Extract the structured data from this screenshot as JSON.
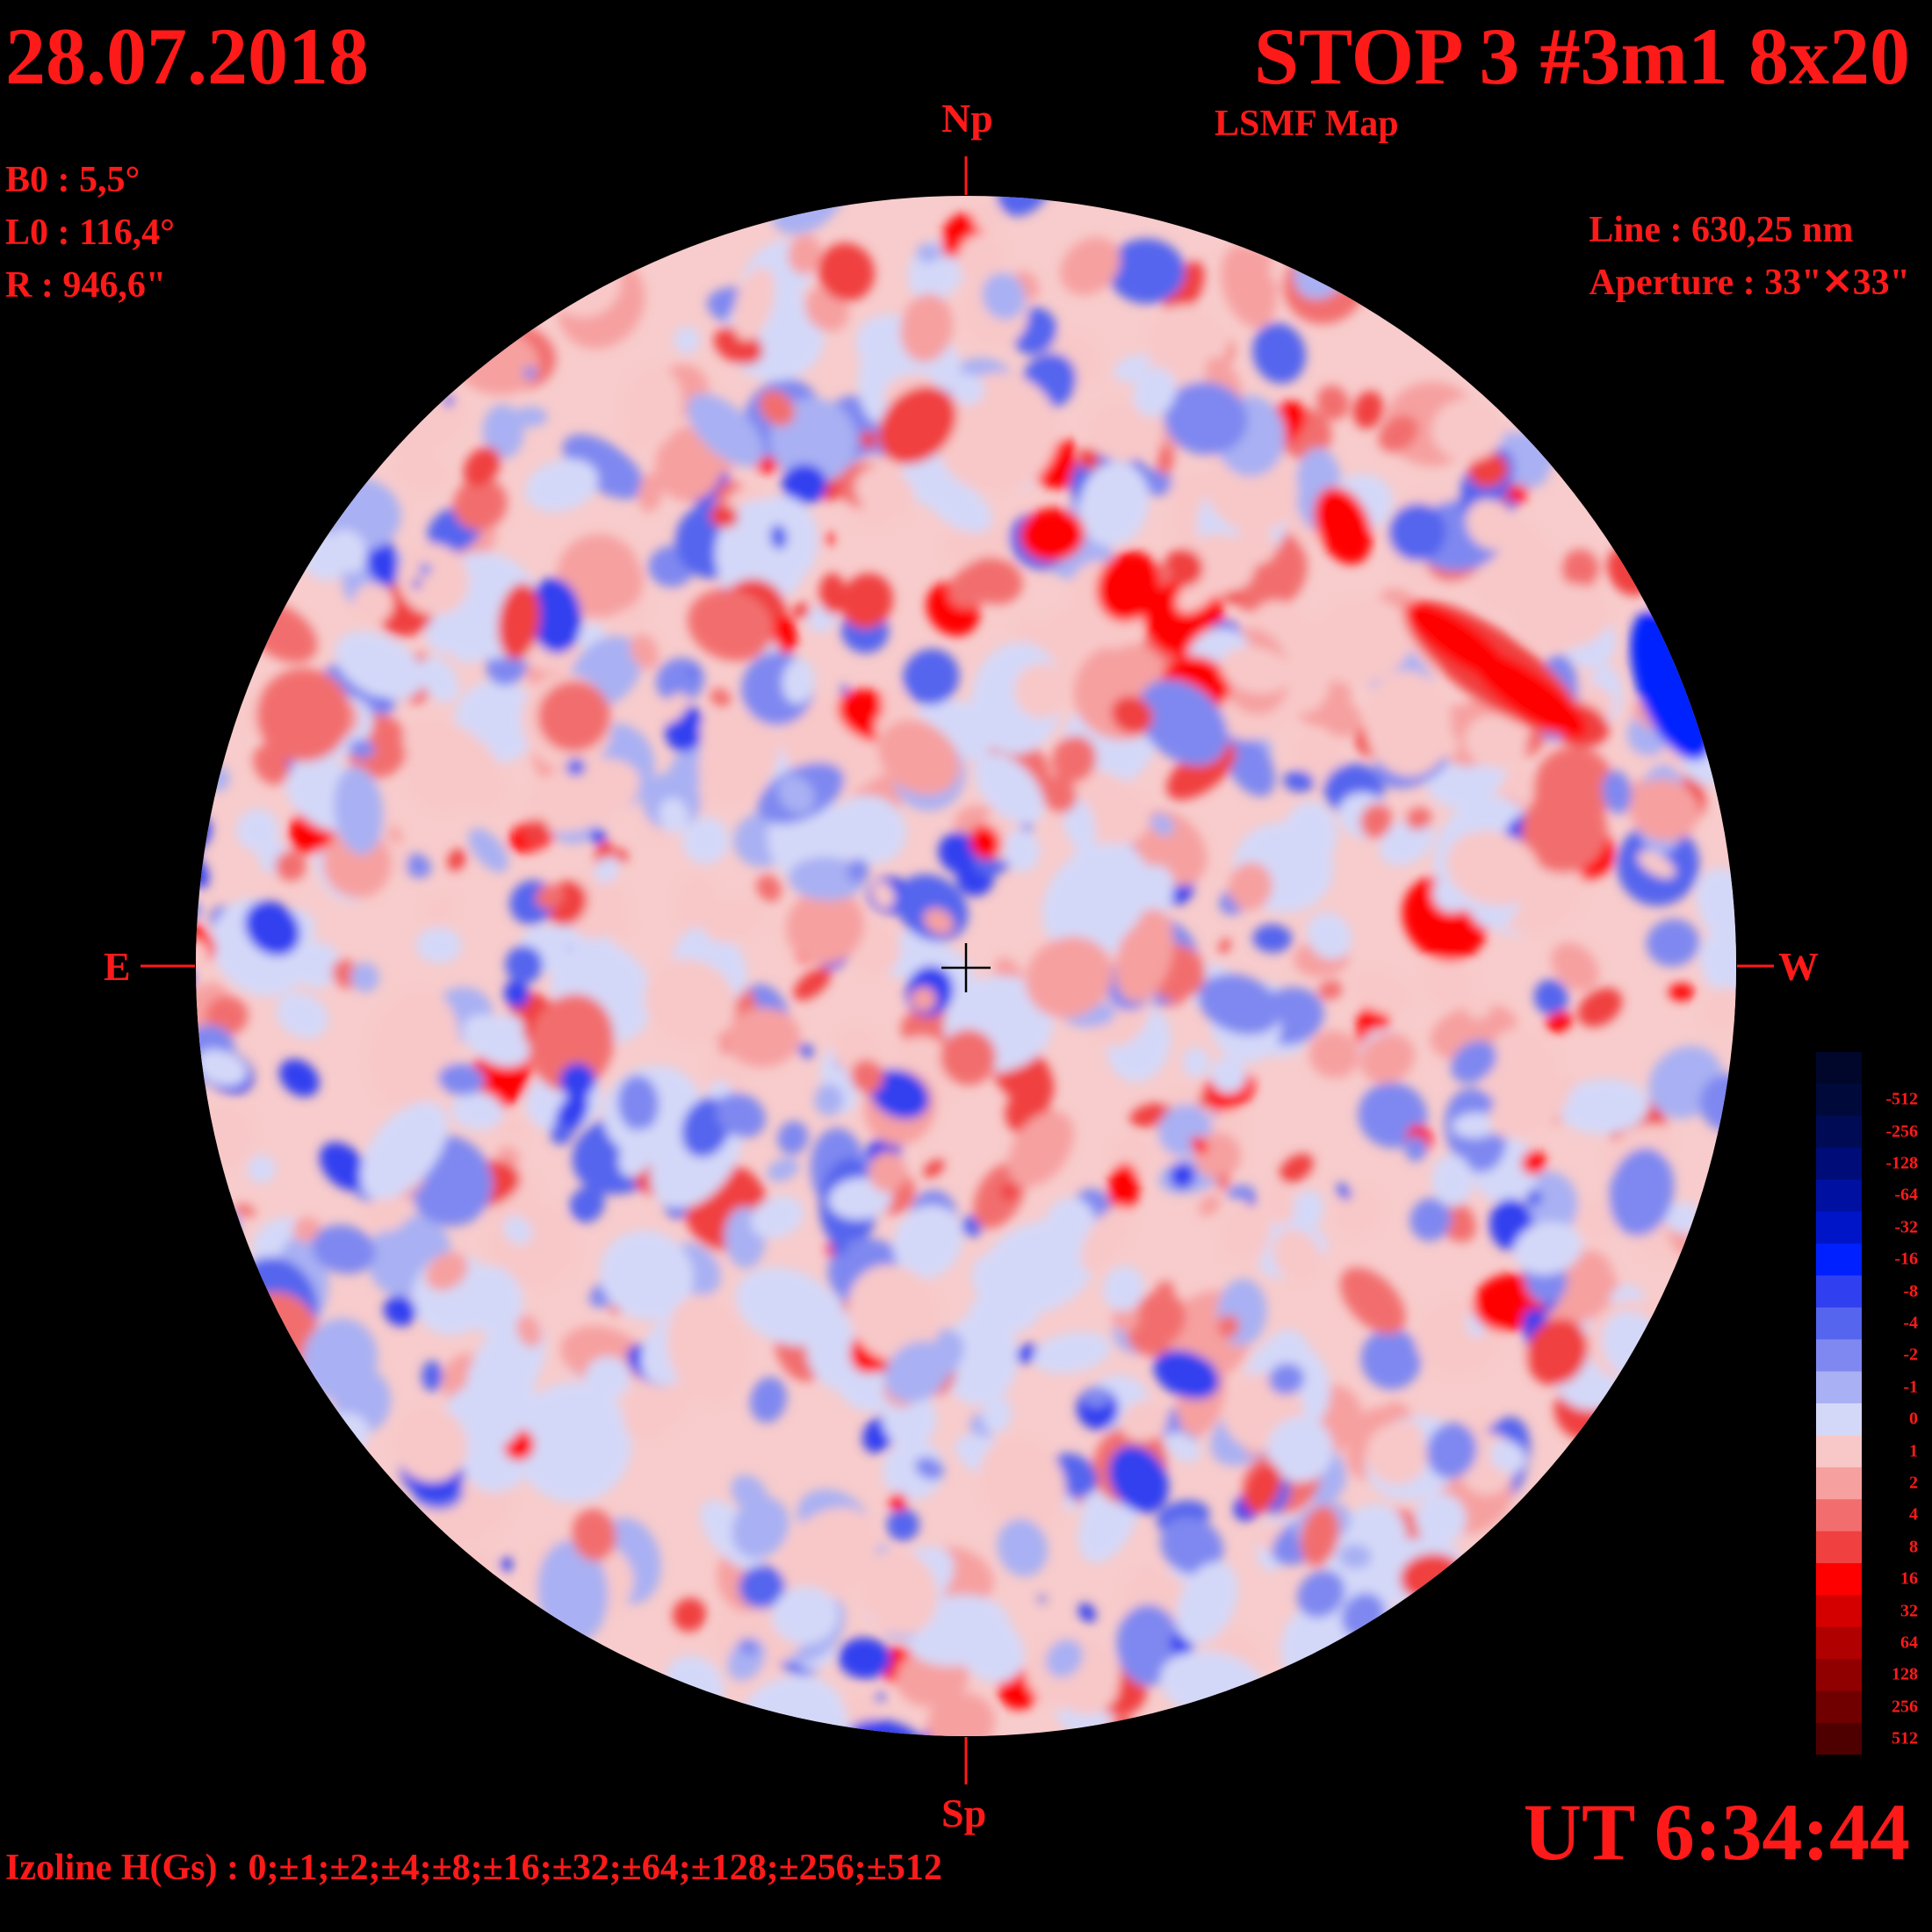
{
  "header": {
    "date": "28.07.2018",
    "station": "STOP 3 #3m1 8x20",
    "subtitle": "LSMF  Map"
  },
  "params": {
    "b0": "B0 : 5,5°",
    "l0": "L0 : 116,4°",
    "r": "R  : 946,6\""
  },
  "instrument": {
    "line": "Line :  630,25 nm",
    "aperture": "Aperture : 33\"✕33\""
  },
  "directions": {
    "north": "Np",
    "south": "Sp",
    "east": "E",
    "west": "W"
  },
  "footer": {
    "ut": "UT 6:34:44",
    "izoline": "Izoline H(Gs) : 0;±1;±2;±4;±8;±16;±32;±64;±128;±256;±512"
  },
  "colorbar": {
    "levels": [
      {
        "label": "-512",
        "color": "#000a3a"
      },
      {
        "label": "-256",
        "color": "#000b55"
      },
      {
        "label": "-128",
        "color": "#000c78"
      },
      {
        "label": "-64",
        "color": "#0010a0"
      },
      {
        "label": "-32",
        "color": "#0015c8"
      },
      {
        "label": "-16",
        "color": "#0020ff"
      },
      {
        "label": "-8",
        "color": "#3040f0"
      },
      {
        "label": "-4",
        "color": "#5565ee"
      },
      {
        "label": "-2",
        "color": "#7f88f0"
      },
      {
        "label": "-1",
        "color": "#a9b0f3"
      },
      {
        "label": "0",
        "color": "#d4d8f8"
      },
      {
        "label": "1",
        "color": "#f8c8c8"
      },
      {
        "label": "2",
        "color": "#f6a0a0"
      },
      {
        "label": "4",
        "color": "#f26e6e"
      },
      {
        "label": "8",
        "color": "#f04040"
      },
      {
        "label": "16",
        "color": "#ff0000"
      },
      {
        "label": "32",
        "color": "#d40000"
      },
      {
        "label": "64",
        "color": "#b00000"
      },
      {
        "label": "128",
        "color": "#900000"
      },
      {
        "label": "256",
        "color": "#700000"
      },
      {
        "label": "512",
        "color": "#4e0000"
      }
    ]
  }
}
